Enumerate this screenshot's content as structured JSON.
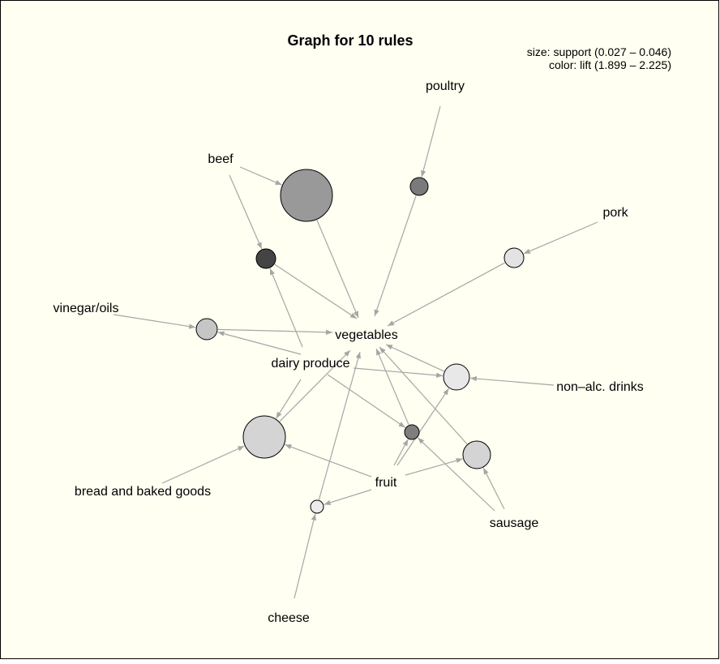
{
  "title": "Graph for 10 rules",
  "legend": {
    "size_text": "size: support (0.027 – 0.046)",
    "color_text": "color: lift (1.899 – 2.225)"
  },
  "colors": {
    "background": "#fffff2",
    "border": "#000000",
    "edge": "#a6a6a6"
  },
  "items": [
    {
      "id": "poultry",
      "label": "poultry"
    },
    {
      "id": "beef",
      "label": "beef"
    },
    {
      "id": "pork",
      "label": "pork"
    },
    {
      "id": "vinegar",
      "label": "vinegar/oils"
    },
    {
      "id": "vegetables",
      "label": "vegetables"
    },
    {
      "id": "dairy",
      "label": "dairy produce"
    },
    {
      "id": "nonalc",
      "label": "non–alc. drinks"
    },
    {
      "id": "fruit",
      "label": "fruit"
    },
    {
      "id": "bread",
      "label": "bread and baked goods"
    },
    {
      "id": "sausage",
      "label": "sausage"
    },
    {
      "id": "cheese",
      "label": "cheese"
    }
  ],
  "rules": [
    {
      "id": "r1",
      "fill": "#999999",
      "lhs": [
        "beef"
      ],
      "rhs": "vegetables"
    },
    {
      "id": "r2",
      "fill": "#7a7a7a",
      "lhs": [
        "poultry"
      ],
      "rhs": "vegetables"
    },
    {
      "id": "r3",
      "fill": "#444444",
      "lhs": [
        "beef",
        "dairy"
      ],
      "rhs": "vegetables"
    },
    {
      "id": "r4",
      "fill": "#e3e3e3",
      "lhs": [
        "pork"
      ],
      "rhs": "vegetables"
    },
    {
      "id": "r5",
      "fill": "#c6c6c6",
      "lhs": [
        "vinegar",
        "dairy"
      ],
      "rhs": "vegetables"
    },
    {
      "id": "r6",
      "fill": "#e8e8e8",
      "lhs": [
        "dairy",
        "nonalc",
        "fruit"
      ],
      "rhs": "vegetables"
    },
    {
      "id": "r7",
      "fill": "#d4d4d4",
      "lhs": [
        "bread",
        "dairy",
        "fruit"
      ],
      "rhs": "vegetables"
    },
    {
      "id": "r8",
      "fill": "#7e7e7e",
      "lhs": [
        "dairy",
        "fruit",
        "sausage"
      ],
      "rhs": "vegetables"
    },
    {
      "id": "r9",
      "fill": "#d4d4d4",
      "lhs": [
        "fruit",
        "sausage"
      ],
      "rhs": "vegetables"
    },
    {
      "id": "r10",
      "fill": "#ececec",
      "lhs": [
        "fruit",
        "cheese"
      ],
      "rhs": "vegetables"
    }
  ]
}
